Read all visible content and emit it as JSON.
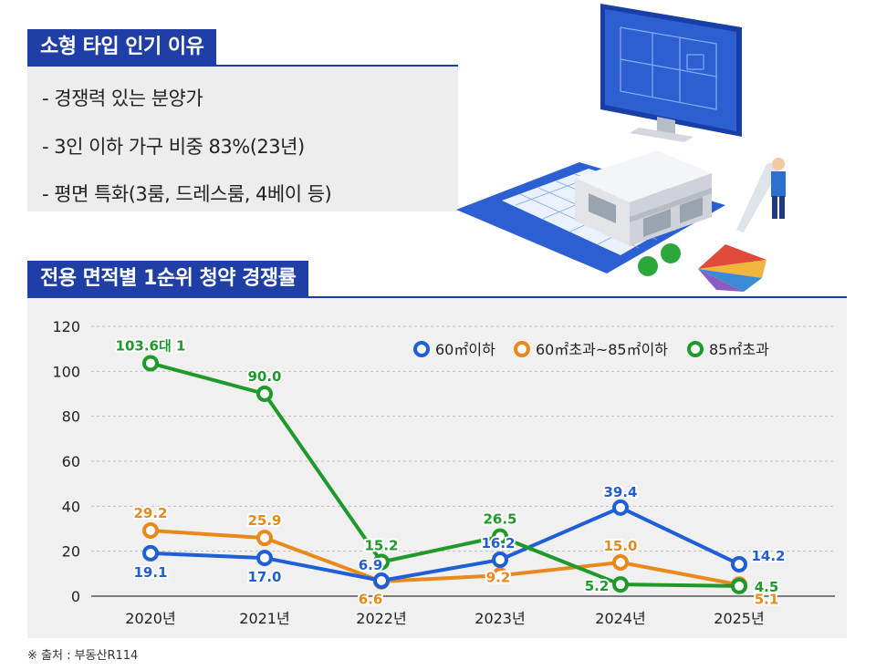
{
  "header": {
    "title": "소형 타입 인기 이유",
    "reasons": [
      "- 경쟁력 있는 분양가",
      "- 3인 이하 가구 비중 83%(23년)",
      "- 평면 특화(3룸, 드레스룸, 4베이 등)"
    ]
  },
  "chart_section": {
    "title": "전용 면적별 1순위 청약 경쟁률"
  },
  "source": "※ 출처 : 부동산R114",
  "colors": {
    "brand": "#1f3fa6",
    "blue": "#1f5fd6",
    "orange": "#e8891c",
    "green": "#1f9a2a"
  },
  "chart_data": {
    "type": "line",
    "categories": [
      "2020년",
      "2021년",
      "2022년",
      "2023년",
      "2024년",
      "2025년"
    ],
    "ylim": [
      0,
      120
    ],
    "yticks": [
      0,
      20,
      40,
      60,
      80,
      100,
      120
    ],
    "legend_position": "top-right",
    "grid": true,
    "series": [
      {
        "name": "60㎡이하",
        "color": "#1f5fd6",
        "values": [
          19.1,
          17.0,
          6.9,
          16.2,
          39.4,
          14.2
        ],
        "labels": [
          "19.1",
          "17.0",
          "6.9",
          "16.2",
          "39.4",
          "14.2"
        ]
      },
      {
        "name": "60㎡초과~85㎡이하",
        "color": "#e8891c",
        "values": [
          29.2,
          25.9,
          6.6,
          9.2,
          15.0,
          5.1
        ],
        "labels": [
          "29.2",
          "25.9",
          "6.6",
          "9.2",
          "15.0",
          "5.1"
        ]
      },
      {
        "name": "85㎡초과",
        "color": "#1f9a2a",
        "values": [
          103.6,
          90.0,
          15.2,
          26.5,
          5.2,
          4.5
        ],
        "labels": [
          "103.6대 1",
          "90.0",
          "15.2",
          "26.5",
          "5.2",
          "4.5"
        ]
      }
    ]
  }
}
